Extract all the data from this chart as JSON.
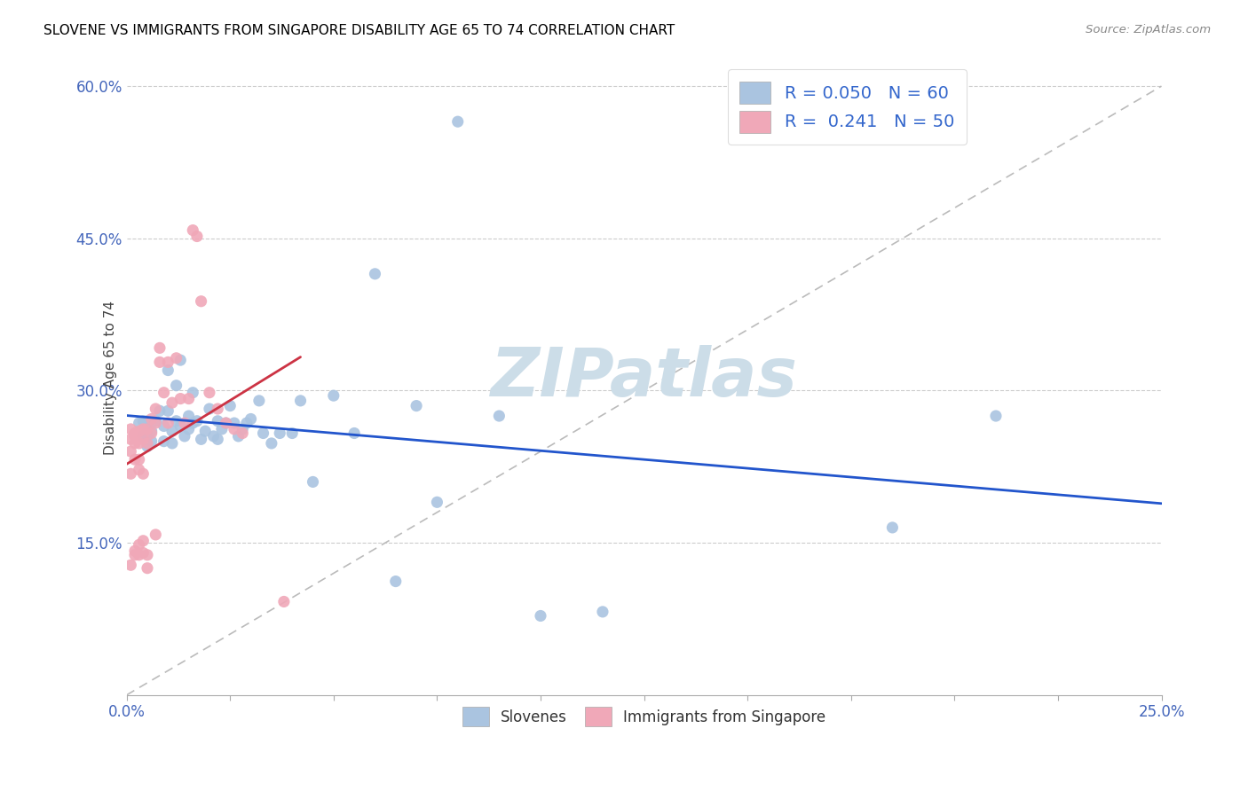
{
  "title": "SLOVENE VS IMMIGRANTS FROM SINGAPORE DISABILITY AGE 65 TO 74 CORRELATION CHART",
  "source": "Source: ZipAtlas.com",
  "ylabel": "Disability Age 65 to 74",
  "xlabel_slovenes": "Slovenes",
  "xlabel_immigrants": "Immigrants from Singapore",
  "xlim": [
    0.0,
    0.25
  ],
  "ylim": [
    0.0,
    0.625
  ],
  "xticks": [
    0.0,
    0.025,
    0.05,
    0.075,
    0.1,
    0.125,
    0.15,
    0.175,
    0.2,
    0.225,
    0.25
  ],
  "xtick_labels_show": {
    "0.0": "0.0%",
    "0.25": "25.0%"
  },
  "yticks": [
    0.0,
    0.15,
    0.3,
    0.45,
    0.6
  ],
  "ytick_labels": [
    "",
    "15.0%",
    "30.0%",
    "45.0%",
    "60.0%"
  ],
  "blue_color": "#aac4e0",
  "pink_color": "#f0a8b8",
  "trend_blue_color": "#2255cc",
  "trend_pink_color": "#cc3344",
  "trend_diag_color": "#bbbbbb",
  "watermark": "ZIPatlas",
  "watermark_color": "#ccdde8",
  "blue_points_x": [
    0.003,
    0.004,
    0.004,
    0.005,
    0.005,
    0.005,
    0.005,
    0.006,
    0.006,
    0.007,
    0.008,
    0.009,
    0.009,
    0.01,
    0.01,
    0.011,
    0.011,
    0.012,
    0.012,
    0.013,
    0.013,
    0.014,
    0.015,
    0.015,
    0.016,
    0.016,
    0.017,
    0.018,
    0.019,
    0.02,
    0.021,
    0.022,
    0.022,
    0.023,
    0.024,
    0.025,
    0.026,
    0.027,
    0.028,
    0.029,
    0.03,
    0.032,
    0.033,
    0.035,
    0.037,
    0.04,
    0.042,
    0.045,
    0.05,
    0.055,
    0.06,
    0.065,
    0.07,
    0.075,
    0.08,
    0.09,
    0.1,
    0.115,
    0.185,
    0.21
  ],
  "blue_points_y": [
    0.268,
    0.27,
    0.255,
    0.27,
    0.265,
    0.255,
    0.245,
    0.26,
    0.25,
    0.27,
    0.28,
    0.265,
    0.25,
    0.32,
    0.28,
    0.26,
    0.248,
    0.305,
    0.27,
    0.33,
    0.265,
    0.255,
    0.275,
    0.262,
    0.298,
    0.268,
    0.27,
    0.252,
    0.26,
    0.282,
    0.255,
    0.27,
    0.252,
    0.262,
    0.268,
    0.285,
    0.268,
    0.255,
    0.262,
    0.268,
    0.272,
    0.29,
    0.258,
    0.248,
    0.258,
    0.258,
    0.29,
    0.21,
    0.295,
    0.258,
    0.415,
    0.112,
    0.285,
    0.19,
    0.565,
    0.275,
    0.078,
    0.082,
    0.165,
    0.275
  ],
  "pink_points_x": [
    0.001,
    0.001,
    0.001,
    0.001,
    0.001,
    0.002,
    0.002,
    0.002,
    0.002,
    0.002,
    0.002,
    0.003,
    0.003,
    0.003,
    0.003,
    0.003,
    0.003,
    0.004,
    0.004,
    0.004,
    0.004,
    0.004,
    0.005,
    0.005,
    0.005,
    0.005,
    0.006,
    0.006,
    0.007,
    0.007,
    0.007,
    0.008,
    0.008,
    0.009,
    0.01,
    0.01,
    0.011,
    0.012,
    0.013,
    0.014,
    0.015,
    0.016,
    0.017,
    0.018,
    0.02,
    0.022,
    0.024,
    0.026,
    0.028,
    0.038
  ],
  "pink_points_y": [
    0.262,
    0.252,
    0.24,
    0.218,
    0.128,
    0.258,
    0.248,
    0.232,
    0.142,
    0.255,
    0.138,
    0.26,
    0.248,
    0.232,
    0.222,
    0.148,
    0.138,
    0.262,
    0.252,
    0.218,
    0.152,
    0.14,
    0.262,
    0.248,
    0.138,
    0.125,
    0.272,
    0.258,
    0.282,
    0.268,
    0.158,
    0.342,
    0.328,
    0.298,
    0.328,
    0.268,
    0.288,
    0.332,
    0.292,
    0.268,
    0.292,
    0.458,
    0.452,
    0.388,
    0.298,
    0.282,
    0.268,
    0.262,
    0.258,
    0.092
  ]
}
